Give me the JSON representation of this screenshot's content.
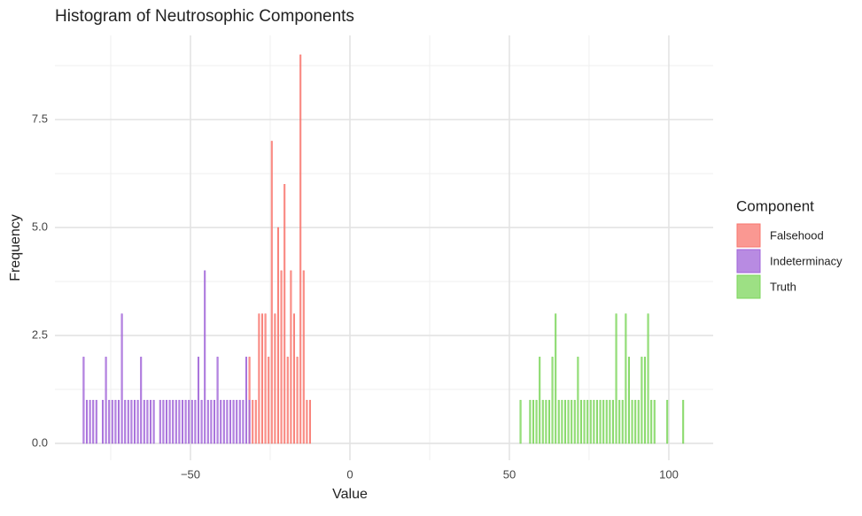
{
  "chart_data": {
    "type": "histogram",
    "title": "Histogram of Neutrosophic Components",
    "x_label": "Value",
    "y_label": "Frequency",
    "legend_title": "Component",
    "xlim": [
      -92.5,
      113.9
    ],
    "ylim": [
      -0.39,
      9.45
    ],
    "xticks": [
      {
        "value": -50,
        "label": "−50"
      },
      0,
      50,
      100
    ],
    "yticks": [
      {
        "value": 0,
        "label": "0.0"
      },
      2.5,
      {
        "value": 5,
        "label": "5.0"
      },
      7.5
    ],
    "minor_xticks": [
      -75,
      -25,
      25,
      75
    ],
    "minor_yticks": [
      1.25,
      3.75,
      6.25,
      8.75
    ],
    "grid": true,
    "legend": "right",
    "series": [
      {
        "name": "Falsehood",
        "color": "#f8766d",
        "bins": [
          -32,
          -31,
          -30,
          -29,
          -28,
          -27,
          -26,
          -25,
          -24,
          -23,
          -22,
          -21,
          -20,
          -19,
          -18,
          -17,
          -16,
          -15,
          -14,
          -13,
          -12
        ],
        "values": [
          2,
          1,
          1,
          3,
          3,
          3,
          2,
          7,
          3,
          5,
          4,
          6,
          2,
          4,
          3,
          2,
          9,
          4,
          1,
          1
        ]
      },
      {
        "name": "Indeterminacy",
        "color": "#a064d8",
        "bins": [
          -84,
          -83,
          -82,
          -81,
          -80,
          -79,
          -78,
          -77,
          -76,
          -75,
          -74,
          -73,
          -72,
          -71,
          -70,
          -69,
          -68,
          -67,
          -66,
          -65,
          -64,
          -63,
          -62,
          -61,
          -60,
          -59,
          -58,
          -57,
          -56,
          -55,
          -54,
          -53,
          -52,
          -51,
          -50,
          -49,
          -48,
          -47,
          -46,
          -45,
          -44,
          -43,
          -42,
          -41,
          -40,
          -39,
          -38,
          -37,
          -36,
          -35,
          -34,
          -33,
          -32,
          -31
        ],
        "values": [
          2,
          1,
          1,
          1,
          1,
          0,
          1,
          2,
          1,
          1,
          1,
          1,
          3,
          1,
          1,
          1,
          1,
          1,
          2,
          1,
          1,
          1,
          1,
          0,
          1,
          1,
          1,
          1,
          1,
          1,
          1,
          1,
          1,
          1,
          1,
          1,
          2,
          1,
          4,
          1,
          1,
          1,
          2,
          1,
          1,
          1,
          1,
          1,
          1,
          1,
          1,
          2,
          1
        ]
      },
      {
        "name": "Truth",
        "color": "#7cd65b",
        "bins": [
          53,
          54,
          55,
          56,
          57,
          58,
          59,
          60,
          61,
          62,
          63,
          64,
          65,
          66,
          67,
          68,
          69,
          70,
          71,
          72,
          73,
          74,
          75,
          76,
          77,
          78,
          79,
          80,
          81,
          82,
          83,
          84,
          85,
          86,
          87,
          88,
          89,
          90,
          91,
          92,
          93,
          94,
          95,
          96,
          97,
          98,
          99,
          100,
          101,
          102,
          103,
          104,
          105
        ],
        "values": [
          1,
          0,
          0,
          1,
          1,
          1,
          2,
          1,
          1,
          1,
          2,
          3,
          1,
          1,
          1,
          1,
          1,
          1,
          2,
          1,
          1,
          1,
          1,
          1,
          1,
          1,
          1,
          1,
          1,
          1,
          3,
          1,
          1,
          3,
          2,
          1,
          1,
          1,
          2,
          2,
          3,
          1,
          1,
          0,
          0,
          0,
          1,
          0,
          0,
          0,
          0,
          1
        ]
      }
    ]
  }
}
